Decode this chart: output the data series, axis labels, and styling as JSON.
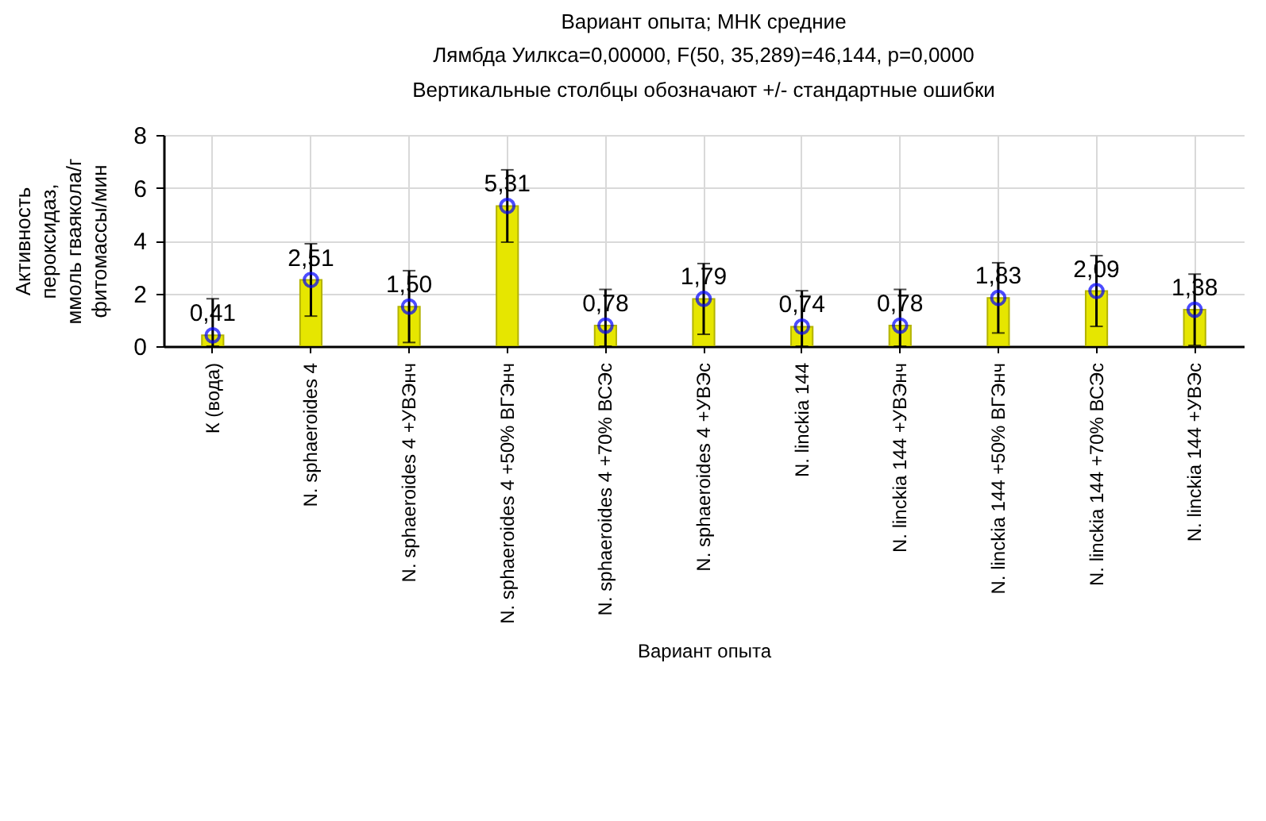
{
  "chart_data": {
    "type": "bar",
    "title": "Вариант опыта; МНК средние",
    "subtitle": "Лямбда Уилкса=0,00000, F(50, 35,289)=46,144, p=0,0000",
    "annotations": [
      "Вертикальные столбцы обозначают +/- стандартные ошибки"
    ],
    "xlabel": "Вариант опыта",
    "ylabel": "Активность\nпероксидаз,\nммоль гваякола/г\nфитомассы/мин",
    "categories": [
      "К (вода)",
      "N. sphaeroides 4",
      "N. sphaeroides 4 +УВЭнч",
      "N. sphaeroides 4 +50% ВГЭнч",
      "N. sphaeroides 4 +70% ВСЭс",
      "N. sphaeroides 4 +УВЭс",
      "N. linckia 144",
      "N. linckia 144 +УВЭнч",
      "N. linckia 144 +50% ВГЭнч",
      "N. linckia 144 +70% ВСЭс",
      "N. linckia 144 +УВЭс"
    ],
    "series": [
      {
        "color": "#e6e600",
        "values": [
          0.41,
          2.51,
          1.5,
          5.31,
          0.78,
          1.79,
          0.74,
          0.78,
          1.83,
          2.09,
          1.38
        ],
        "errors": [
          [
            0,
            1.8
          ],
          [
            1.14,
            3.88
          ],
          [
            0.14,
            2.86
          ],
          [
            3.94,
            6.68
          ],
          [
            0,
            2.15
          ],
          [
            0.45,
            3.13
          ],
          [
            0,
            2.1
          ],
          [
            0,
            2.15
          ],
          [
            0.5,
            3.16
          ],
          [
            0.75,
            3.43
          ],
          [
            0.03,
            2.73
          ]
        ],
        "value_labels": [
          "0,41",
          "2,51",
          "1,50",
          "5,31",
          "0,78",
          "1,79",
          "0,74",
          "0,78",
          "1,83",
          "2,09",
          "1,38"
        ]
      },
      {
        "type": "scatter",
        "color": "#0000ff",
        "x": [
          "К (вода)",
          "N. sphaeroides 4",
          "N. sphaeroides 4 +УВЭнч",
          "N. sphaeroides 4 +50% ВГЭнч",
          "N. sphaeroides 4 +70% ВСЭс",
          "N. sphaeroides 4 +УВЭс",
          "N. linckia 144",
          "N. linckia 144 +УВЭнч",
          "N. linckia 144 +50% ВГЭнч",
          "N. linckia 144 +70% ВСЭс",
          "N. linckia 144 +УВЭс"
        ],
        "values": [
          0.41,
          2.51,
          1.5,
          5.31,
          0.78,
          1.79,
          0.74,
          0.78,
          1.83,
          2.09,
          1.38
        ]
      }
    ],
    "ylim": [
      0,
      8
    ],
    "yticks": [
      0,
      2,
      4,
      6,
      8
    ],
    "grid": true,
    "marker": "circle"
  }
}
